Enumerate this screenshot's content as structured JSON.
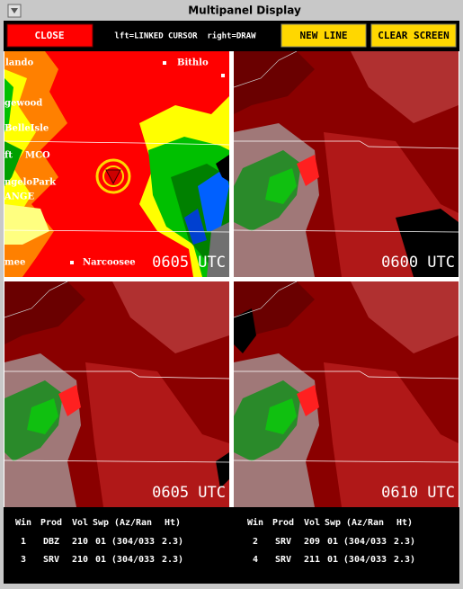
{
  "window": {
    "title": "Multipanel Display"
  },
  "toolbar": {
    "close": "CLOSE",
    "hint": "lft=LINKED CURSOR  right=DRAW",
    "new_line": "NEW LINE",
    "clear_screen": "CLEAR SCREEN"
  },
  "panels": [
    {
      "time": "0605 UTC",
      "places": [
        "lando",
        "Bithlo",
        "gewood",
        "BelleIsle",
        "ft",
        "MCO",
        "ngeloPark",
        "ANGE",
        "mee",
        "Narcoosee"
      ]
    },
    {
      "time": "0600 UTC"
    },
    {
      "time": "0605 UTC"
    },
    {
      "time": "0610 UTC"
    }
  ],
  "table": {
    "headers": [
      "Win",
      "Prod",
      "Vol",
      "Swp",
      "(Az/Ran",
      "Ht)"
    ],
    "rows": [
      [
        "1",
        "DBZ",
        "210",
        "01",
        "(304/033",
        "2.3)"
      ],
      [
        "2",
        "SRV",
        "209",
        "01",
        "(304/033",
        "2.3)"
      ],
      [
        "3",
        "SRV",
        "210",
        "01",
        "(304/033",
        "2.3)"
      ],
      [
        "4",
        "SRV",
        "211",
        "01",
        "(304/033",
        "2.3)"
      ]
    ]
  }
}
